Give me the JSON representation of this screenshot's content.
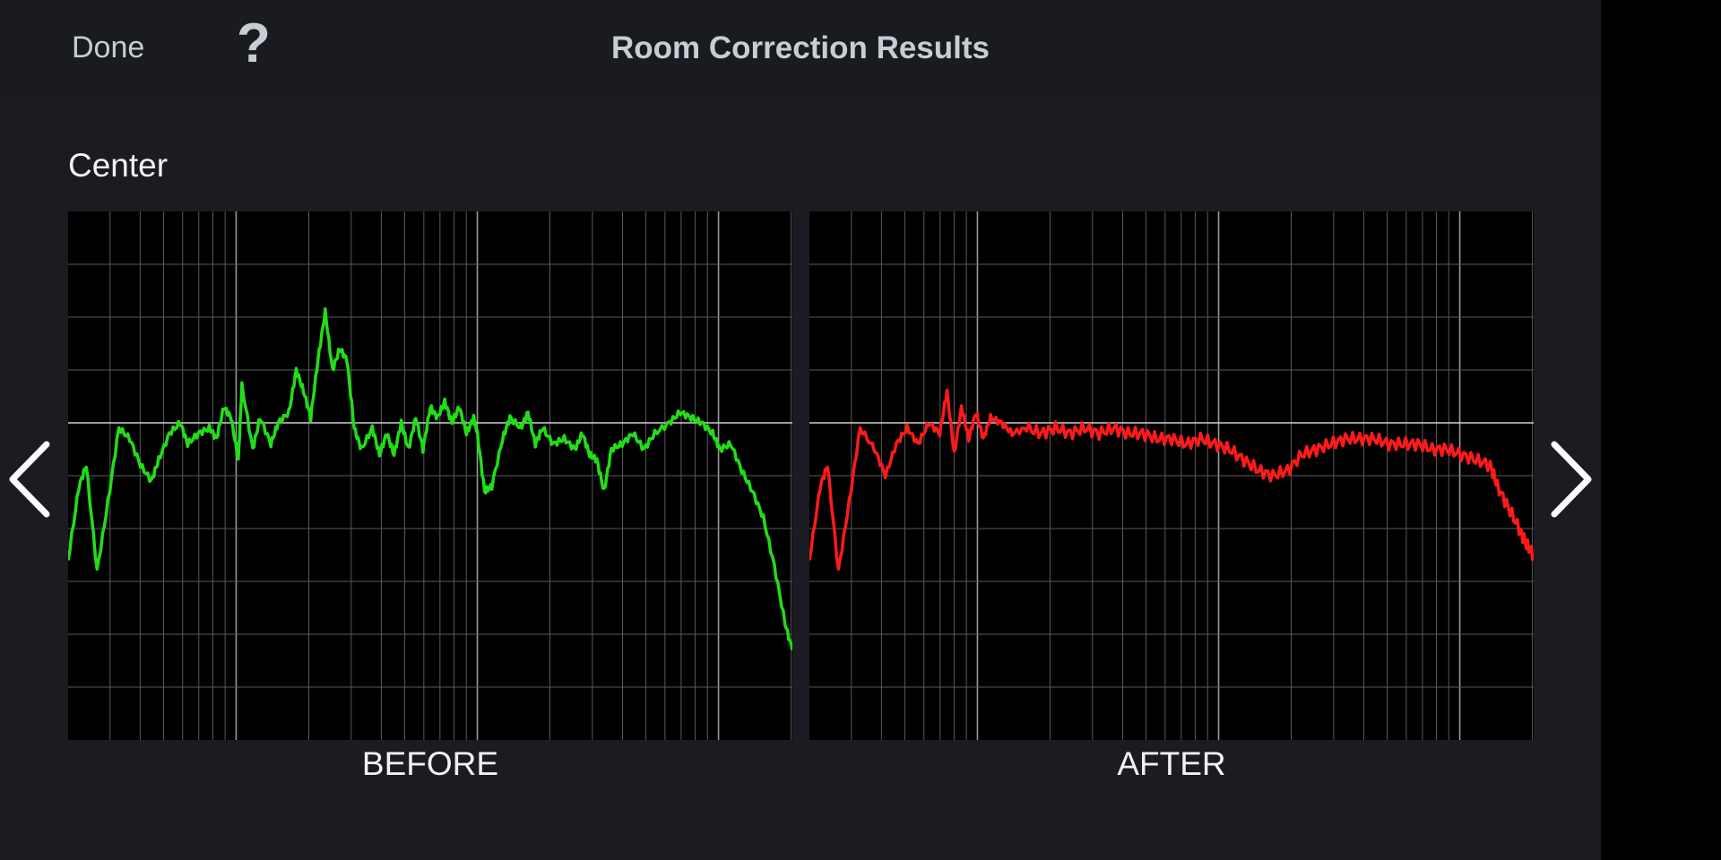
{
  "header": {
    "done_label": "Done",
    "help_label": "?",
    "title": "Room Correction Results"
  },
  "channel_label": "Center",
  "colors": {
    "before_trace": "#22dd18",
    "after_trace": "#ff1a1a",
    "grid": "#5a5a5a",
    "grid_major": "#9a9a9a",
    "reference_line": "#cfcfcf"
  },
  "icons": {
    "prev": "chevron-left-icon",
    "next": "chevron-right-icon",
    "help": "question-mark-icon"
  },
  "chart_data": [
    {
      "type": "line",
      "title": "BEFORE",
      "xscale": "log",
      "grid": true,
      "horizontal_gridlines": 10,
      "reference_line": "0.4 of plot height from top",
      "series": [
        {
          "color": "#22dd18",
          "points": [
            [
              0,
              0.66
            ],
            [
              0.015,
              0.52
            ],
            [
              0.025,
              0.48
            ],
            [
              0.04,
              0.68
            ],
            [
              0.055,
              0.55
            ],
            [
              0.07,
              0.41
            ],
            [
              0.085,
              0.43
            ],
            [
              0.1,
              0.48
            ],
            [
              0.115,
              0.51
            ],
            [
              0.125,
              0.47
            ],
            [
              0.14,
              0.42
            ],
            [
              0.155,
              0.4
            ],
            [
              0.165,
              0.44
            ],
            [
              0.18,
              0.42
            ],
            [
              0.195,
              0.41
            ],
            [
              0.205,
              0.43
            ],
            [
              0.215,
              0.37
            ],
            [
              0.225,
              0.39
            ],
            [
              0.235,
              0.47
            ],
            [
              0.24,
              0.33
            ],
            [
              0.255,
              0.45
            ],
            [
              0.265,
              0.39
            ],
            [
              0.28,
              0.44
            ],
            [
              0.29,
              0.4
            ],
            [
              0.305,
              0.38
            ],
            [
              0.315,
              0.3
            ],
            [
              0.325,
              0.34
            ],
            [
              0.335,
              0.39
            ],
            [
              0.345,
              0.28
            ],
            [
              0.355,
              0.19
            ],
            [
              0.365,
              0.3
            ],
            [
              0.375,
              0.26
            ],
            [
              0.385,
              0.28
            ],
            [
              0.395,
              0.41
            ],
            [
              0.405,
              0.45
            ],
            [
              0.42,
              0.41
            ],
            [
              0.43,
              0.46
            ],
            [
              0.44,
              0.42
            ],
            [
              0.45,
              0.46
            ],
            [
              0.46,
              0.4
            ],
            [
              0.47,
              0.45
            ],
            [
              0.48,
              0.39
            ],
            [
              0.49,
              0.45
            ],
            [
              0.5,
              0.37
            ],
            [
              0.51,
              0.39
            ],
            [
              0.52,
              0.36
            ],
            [
              0.53,
              0.4
            ],
            [
              0.54,
              0.37
            ],
            [
              0.55,
              0.42
            ],
            [
              0.56,
              0.39
            ],
            [
              0.565,
              0.42
            ],
            [
              0.575,
              0.53
            ],
            [
              0.585,
              0.52
            ],
            [
              0.6,
              0.43
            ],
            [
              0.61,
              0.39
            ],
            [
              0.625,
              0.41
            ],
            [
              0.635,
              0.38
            ],
            [
              0.645,
              0.44
            ],
            [
              0.655,
              0.41
            ],
            [
              0.67,
              0.44
            ],
            [
              0.685,
              0.43
            ],
            [
              0.7,
              0.45
            ],
            [
              0.71,
              0.42
            ],
            [
              0.72,
              0.46
            ],
            [
              0.73,
              0.47
            ],
            [
              0.74,
              0.53
            ],
            [
              0.75,
              0.45
            ],
            [
              0.765,
              0.44
            ],
            [
              0.78,
              0.42
            ],
            [
              0.795,
              0.45
            ],
            [
              0.81,
              0.42
            ],
            [
              0.83,
              0.4
            ],
            [
              0.845,
              0.38
            ],
            [
              0.86,
              0.39
            ],
            [
              0.875,
              0.4
            ],
            [
              0.89,
              0.42
            ],
            [
              0.9,
              0.45
            ],
            [
              0.915,
              0.44
            ],
            [
              0.93,
              0.49
            ],
            [
              0.945,
              0.53
            ],
            [
              0.96,
              0.58
            ],
            [
              0.975,
              0.67
            ],
            [
              0.99,
              0.78
            ],
            [
              1.0,
              0.83
            ]
          ]
        }
      ]
    },
    {
      "type": "line",
      "title": "AFTER",
      "xscale": "log",
      "grid": true,
      "horizontal_gridlines": 10,
      "reference_line": "0.4 of plot height from top",
      "series": [
        {
          "color": "#ff1a1a",
          "points": [
            [
              0,
              0.66
            ],
            [
              0.015,
              0.52
            ],
            [
              0.025,
              0.48
            ],
            [
              0.04,
              0.68
            ],
            [
              0.055,
              0.55
            ],
            [
              0.07,
              0.41
            ],
            [
              0.09,
              0.45
            ],
            [
              0.105,
              0.5
            ],
            [
              0.12,
              0.44
            ],
            [
              0.135,
              0.41
            ],
            [
              0.15,
              0.44
            ],
            [
              0.165,
              0.4
            ],
            [
              0.18,
              0.42
            ],
            [
              0.19,
              0.34
            ],
            [
              0.2,
              0.46
            ],
            [
              0.21,
              0.37
            ],
            [
              0.22,
              0.43
            ],
            [
              0.23,
              0.38
            ],
            [
              0.24,
              0.43
            ],
            [
              0.25,
              0.39
            ],
            [
              0.265,
              0.4
            ],
            [
              0.28,
              0.42
            ],
            [
              0.3,
              0.41
            ],
            [
              0.32,
              0.42
            ],
            [
              0.34,
              0.41
            ],
            [
              0.36,
              0.42
            ],
            [
              0.38,
              0.41
            ],
            [
              0.4,
              0.42
            ],
            [
              0.42,
              0.41
            ],
            [
              0.44,
              0.42
            ],
            [
              0.46,
              0.42
            ],
            [
              0.48,
              0.43
            ],
            [
              0.5,
              0.43
            ],
            [
              0.52,
              0.44
            ],
            [
              0.54,
              0.43
            ],
            [
              0.56,
              0.44
            ],
            [
              0.58,
              0.45
            ],
            [
              0.6,
              0.47
            ],
            [
              0.62,
              0.49
            ],
            [
              0.64,
              0.5
            ],
            [
              0.66,
              0.49
            ],
            [
              0.68,
              0.46
            ],
            [
              0.7,
              0.45
            ],
            [
              0.72,
              0.44
            ],
            [
              0.74,
              0.43
            ],
            [
              0.76,
              0.43
            ],
            [
              0.78,
              0.43
            ],
            [
              0.8,
              0.44
            ],
            [
              0.82,
              0.44
            ],
            [
              0.84,
              0.44
            ],
            [
              0.86,
              0.45
            ],
            [
              0.88,
              0.45
            ],
            [
              0.9,
              0.46
            ],
            [
              0.92,
              0.47
            ],
            [
              0.94,
              0.48
            ],
            [
              0.95,
              0.52
            ],
            [
              0.965,
              0.56
            ],
            [
              0.98,
              0.6
            ],
            [
              0.99,
              0.63
            ],
            [
              1.0,
              0.65
            ]
          ]
        }
      ]
    }
  ],
  "captions": {
    "before": "BEFORE",
    "after": "AFTER"
  }
}
